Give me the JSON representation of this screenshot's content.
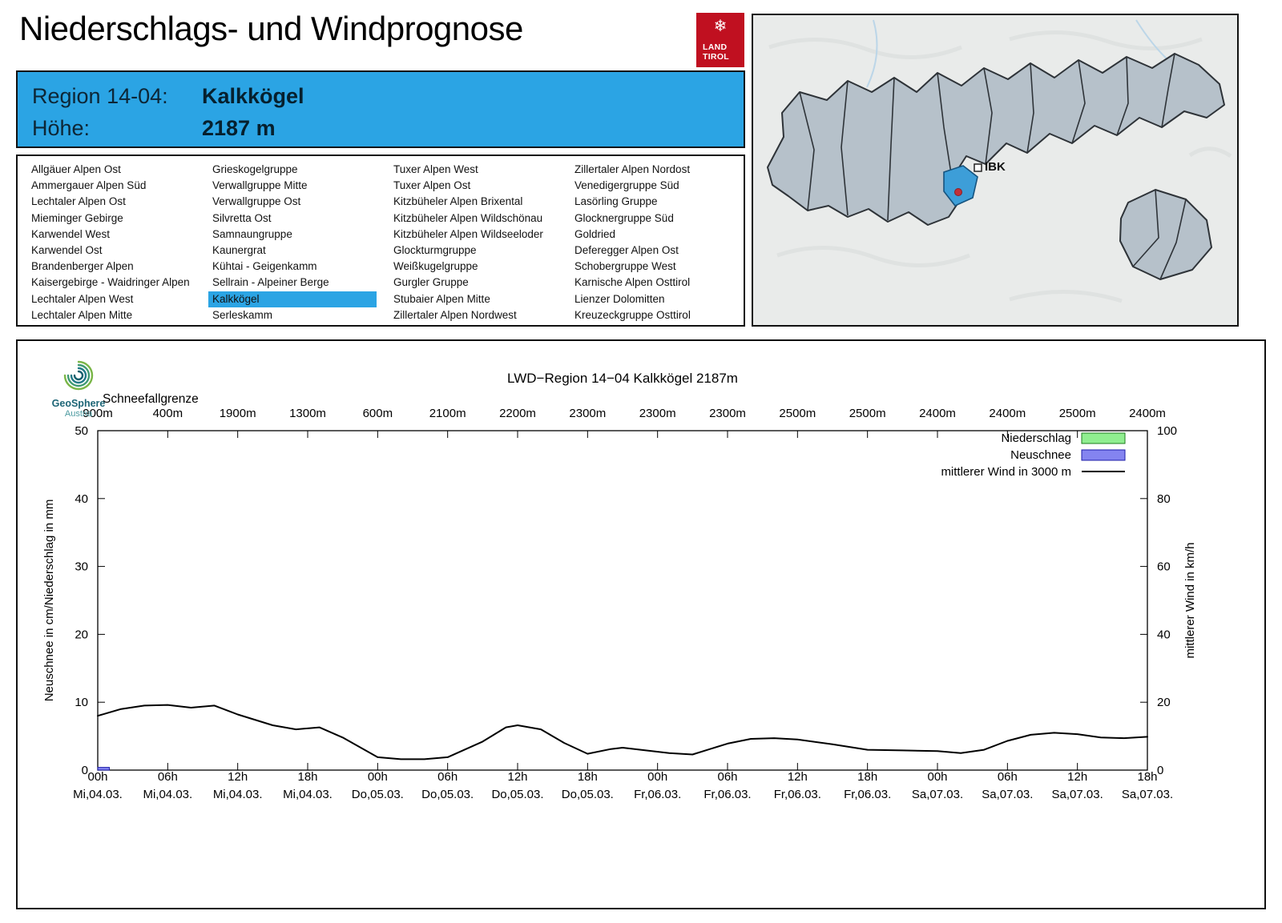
{
  "page": {
    "title": "Niederschlags- und Windprognose"
  },
  "logo": {
    "snowflake_glyph": "❄",
    "line1": "LAND",
    "line2": "TIROL"
  },
  "colors": {
    "accent_blue": "#2ba4e4",
    "map_highlight": "#3d9ed8",
    "tirol_red": "#c01020",
    "precip_green": "#90ee90",
    "snow_blue": "#8484f0"
  },
  "region_info": {
    "region_label": "Region 14-04:",
    "region_value": "Kalkkögel",
    "altitude_label": "Höhe:",
    "altitude_value": "2187 m"
  },
  "region_list": {
    "selected": "Kalkkögel",
    "columns": [
      [
        "Allgäuer Alpen Ost",
        "Ammergauer Alpen Süd",
        "Lechtaler Alpen Ost",
        "Mieminger Gebirge",
        "Karwendel West",
        "Karwendel Ost",
        "Brandenberger Alpen",
        "Kaisergebirge - Waidringer Alpen",
        "Lechtaler Alpen West",
        "Lechtaler Alpen Mitte"
      ],
      [
        "Grieskogelgruppe",
        "Verwallgruppe Mitte",
        "Verwallgruppe Ost",
        "Silvretta Ost",
        "Samnaungruppe",
        "Kaunergrat",
        "Kühtai - Geigenkamm",
        "Sellrain - Alpeiner Berge",
        "Kalkkögel",
        "Serleskamm"
      ],
      [
        "Tuxer Alpen West",
        "Tuxer Alpen Ost",
        "Kitzbüheler Alpen Brixental",
        "Kitzbüheler Alpen Wildschönau",
        "Kitzbüheler Alpen Wildseeloder",
        "Glockturmgruppe",
        "Weißkugelgruppe",
        "Gurgler Gruppe",
        "Stubaier Alpen Mitte",
        "Zillertaler Alpen Nordwest"
      ],
      [
        "Zillertaler Alpen Nordost",
        "Venedigergruppe Süd",
        "Lasörling Gruppe",
        "Glocknergruppe Süd",
        "Goldried",
        "Deferegger Alpen Ost",
        "Schobergruppe West",
        "Karnische Alpen Osttirol",
        "Lienzer Dolomitten",
        "Kreuzeckgruppe Osttirol"
      ]
    ]
  },
  "map": {
    "marker_label": "IBK"
  },
  "geosphere": {
    "line1": "GeoSphere",
    "line2": "Austria"
  },
  "chart_data": {
    "type": "line",
    "title": "LWD−Region 14−04 Kalkkögel 2187m",
    "top_axis_label": "Schneefallgrenze",
    "top_axis_values": [
      "900m",
      "400m",
      "1900m",
      "1300m",
      "600m",
      "2100m",
      "2200m",
      "2300m",
      "2300m",
      "2300m",
      "2500m",
      "2500m",
      "2400m",
      "2400m",
      "2500m",
      "2400m"
    ],
    "x_tick_times": [
      "00h",
      "06h",
      "12h",
      "18h",
      "00h",
      "06h",
      "12h",
      "18h",
      "00h",
      "06h",
      "12h",
      "18h",
      "00h",
      "06h",
      "12h",
      "18h"
    ],
    "x_tick_dates": [
      "Mi,04.03.",
      "Mi,04.03.",
      "Mi,04.03.",
      "Mi,04.03.",
      "Do,05.03.",
      "Do,05.03.",
      "Do,05.03.",
      "Do,05.03.",
      "Fr,06.03.",
      "Fr,06.03.",
      "Fr,06.03.",
      "Fr,06.03.",
      "Sa,07.03.",
      "Sa,07.03.",
      "Sa,07.03.",
      "Sa,07.03."
    ],
    "x_hours_range": [
      0,
      90
    ],
    "ylim_left": [
      0,
      50
    ],
    "ylim_right": [
      0,
      100
    ],
    "y_ticks_left": [
      0,
      10,
      20,
      30,
      40,
      50
    ],
    "y_ticks_right": [
      0,
      20,
      40,
      60,
      80,
      100
    ],
    "ylabel_left": "Neuschnee in cm/Niederschlag in mm",
    "ylabel_right": "mittlerer Wind in km/h",
    "legend": [
      {
        "label": "Niederschlag",
        "type": "box",
        "fill": "#90ee90",
        "border": "#1e7d1e"
      },
      {
        "label": "Neuschnee",
        "type": "box",
        "fill": "#8484f0",
        "border": "#1d1da8"
      },
      {
        "label": "mittlerer Wind in 3000 m",
        "type": "line",
        "color": "#000000"
      }
    ],
    "series": [
      {
        "name": "mittlerer Wind in 3000 m",
        "type": "line",
        "axis": "right",
        "unit": "km/h",
        "hours": [
          0,
          2,
          4,
          6,
          8,
          10,
          12,
          15,
          17,
          19,
          21,
          24,
          26,
          28,
          30,
          33,
          35,
          36,
          38,
          40,
          42,
          44,
          45,
          47,
          49,
          51,
          54,
          56,
          58,
          60,
          63,
          66,
          69,
          72,
          74,
          76,
          78,
          80,
          82,
          84,
          86,
          88,
          90
        ],
        "values": [
          16,
          18,
          19,
          19.2,
          18.4,
          19,
          16.4,
          13.2,
          12,
          12.6,
          9.6,
          3.8,
          3.2,
          3.2,
          3.8,
          8.4,
          12.6,
          13.2,
          12,
          8,
          4.8,
          6.2,
          6.6,
          5.8,
          5,
          4.6,
          7.8,
          9.2,
          9.4,
          9,
          7.6,
          6,
          5.8,
          5.6,
          5,
          6,
          8.6,
          10.4,
          11,
          10.6,
          9.6,
          9.4,
          9.8
        ]
      }
    ],
    "neuschnee_bars": [
      {
        "hour": 0,
        "width_hours": 1,
        "value_cm": 0.4
      }
    ],
    "niederschlag_bars": []
  }
}
